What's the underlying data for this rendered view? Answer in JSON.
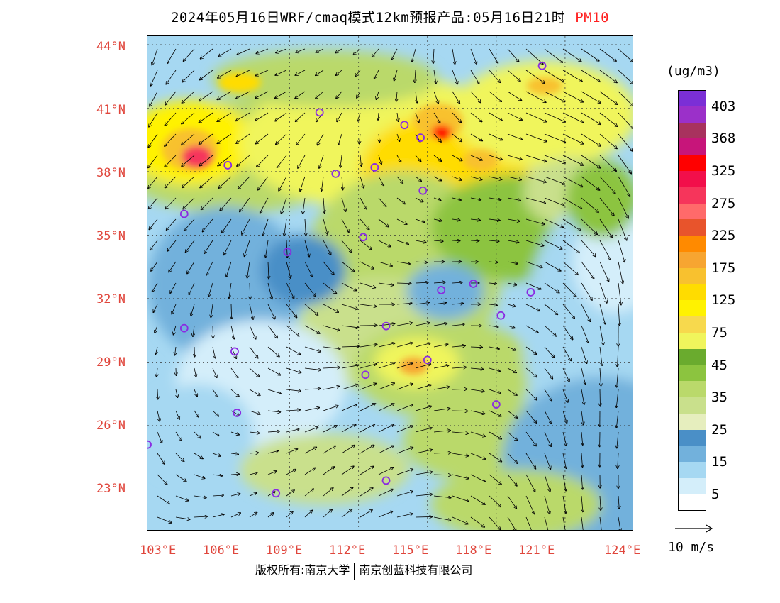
{
  "title": {
    "main": "2024年05月16日WRF/cmaq模式12km预报产品:05月16日21时",
    "variable": "PM10"
  },
  "map": {
    "lat_labels": [
      "44°N",
      "41°N",
      "38°N",
      "35°N",
      "32°N",
      "29°N",
      "26°N",
      "23°N"
    ],
    "lon_labels": [
      "103°E",
      "106°E",
      "109°E",
      "112°E",
      "115°E",
      "118°E",
      "121°E",
      "124°E"
    ],
    "extent": {
      "lon": [
        102.8,
        124.0
      ],
      "lat": [
        21.0,
        44.4
      ]
    },
    "station_marker_color": "#8a2be2",
    "city_markers": [
      {
        "lon": 120.0,
        "lat": 43.0
      },
      {
        "lon": 110.3,
        "lat": 40.8
      },
      {
        "lon": 114.0,
        "lat": 40.2
      },
      {
        "lon": 114.7,
        "lat": 39.6
      },
      {
        "lon": 106.3,
        "lat": 38.3
      },
      {
        "lon": 111.0,
        "lat": 37.9
      },
      {
        "lon": 112.7,
        "lat": 38.2
      },
      {
        "lon": 114.8,
        "lat": 37.1
      },
      {
        "lon": 104.4,
        "lat": 36.0
      },
      {
        "lon": 112.2,
        "lat": 34.9
      },
      {
        "lon": 108.9,
        "lat": 34.2
      },
      {
        "lon": 115.6,
        "lat": 32.4
      },
      {
        "lon": 117.0,
        "lat": 32.7
      },
      {
        "lon": 119.5,
        "lat": 32.3
      },
      {
        "lon": 118.2,
        "lat": 31.2
      },
      {
        "lon": 104.4,
        "lat": 30.6
      },
      {
        "lon": 113.2,
        "lat": 30.7
      },
      {
        "lon": 106.6,
        "lat": 29.5
      },
      {
        "lon": 115.0,
        "lat": 29.1
      },
      {
        "lon": 112.3,
        "lat": 28.4
      },
      {
        "lon": 118.0,
        "lat": 27.0
      },
      {
        "lon": 106.7,
        "lat": 26.6
      },
      {
        "lon": 102.8,
        "lat": 25.1
      },
      {
        "lon": 113.2,
        "lat": 23.4
      },
      {
        "lon": 108.4,
        "lat": 22.8
      }
    ]
  },
  "colorbar": {
    "units": "(ug/m3)",
    "labels": [
      "403",
      "368",
      "325",
      "275",
      "225",
      "175",
      "125",
      "75",
      "45",
      "35",
      "25",
      "15",
      "5"
    ],
    "colors": [
      "#7b2fd6",
      "#9b30c9",
      "#a8325e",
      "#c7157a",
      "#ff0000",
      "#f20f4a",
      "#f6355b",
      "#ff6a6a",
      "#e8542c",
      "#ff8a00",
      "#f7a531",
      "#f8c12f",
      "#ffdc00",
      "#fff200",
      "#f7d94d",
      "#f0f55c",
      "#6aab2e",
      "#8cc43f",
      "#bad96b",
      "#c9e08c",
      "#e6eebe",
      "#4a8fc7",
      "#72b1dc",
      "#a6d8f2",
      "#d4eefa",
      "#ffffff"
    ]
  },
  "wind": {
    "scale_label": "10 m/s"
  },
  "footer": {
    "left": "版权所有:南京大学",
    "right": "南京创蓝科技有限公司"
  }
}
